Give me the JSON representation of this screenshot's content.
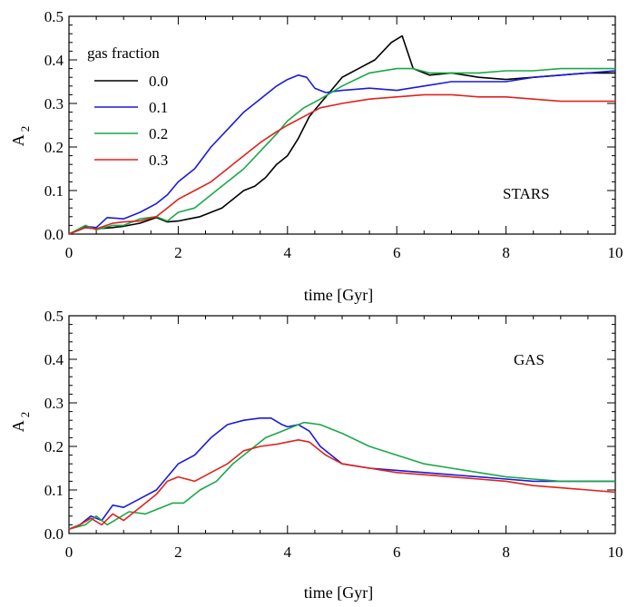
{
  "chart_data": [
    {
      "type": "line",
      "panel_label": "STARS",
      "xlabel": "time [Gyr]",
      "ylabel": "A",
      "ylabel_sub": "2",
      "xlim": [
        0,
        10
      ],
      "ylim": [
        0,
        0.5
      ],
      "xticks": [
        "0",
        "2",
        "4",
        "6",
        "8",
        "10"
      ],
      "yticks": [
        "0.0",
        "0.1",
        "0.2",
        "0.3",
        "0.4",
        "0.5"
      ],
      "legend": {
        "title": "gas fraction",
        "placement": "top-left"
      },
      "series": [
        {
          "name": "0.0",
          "color": "#000000",
          "x": [
            0,
            0.3,
            0.5,
            0.8,
            1.0,
            1.3,
            1.6,
            1.8,
            2.0,
            2.2,
            2.4,
            2.6,
            2.8,
            3.0,
            3.2,
            3.4,
            3.6,
            3.8,
            4.0,
            4.2,
            4.4,
            4.6,
            4.8,
            5.0,
            5.3,
            5.6,
            5.9,
            6.1,
            6.3,
            6.6,
            7.0,
            7.5,
            8.0,
            8.5,
            9.0,
            9.5,
            10.0
          ],
          "y": [
            0.0,
            0.015,
            0.012,
            0.015,
            0.018,
            0.025,
            0.038,
            0.028,
            0.03,
            0.035,
            0.04,
            0.05,
            0.06,
            0.08,
            0.1,
            0.11,
            0.13,
            0.16,
            0.18,
            0.22,
            0.27,
            0.3,
            0.33,
            0.36,
            0.38,
            0.4,
            0.44,
            0.455,
            0.38,
            0.365,
            0.37,
            0.36,
            0.355,
            0.36,
            0.365,
            0.37,
            0.37
          ]
        },
        {
          "name": "0.1",
          "color": "#1a1adc",
          "x": [
            0,
            0.3,
            0.5,
            0.7,
            1.0,
            1.3,
            1.6,
            1.8,
            2.0,
            2.3,
            2.6,
            2.9,
            3.2,
            3.5,
            3.8,
            4.0,
            4.2,
            4.35,
            4.5,
            4.7,
            5.0,
            5.5,
            6.0,
            6.5,
            7.0,
            7.5,
            8.0,
            8.5,
            9.0,
            9.5,
            10.0
          ],
          "y": [
            0.0,
            0.018,
            0.015,
            0.038,
            0.035,
            0.05,
            0.07,
            0.09,
            0.12,
            0.15,
            0.2,
            0.24,
            0.28,
            0.31,
            0.34,
            0.355,
            0.365,
            0.36,
            0.335,
            0.325,
            0.33,
            0.335,
            0.33,
            0.34,
            0.35,
            0.35,
            0.35,
            0.36,
            0.365,
            0.37,
            0.375
          ]
        },
        {
          "name": "0.2",
          "color": "#1aa84a",
          "x": [
            0,
            0.3,
            0.5,
            0.8,
            1.0,
            1.3,
            1.6,
            1.8,
            2.0,
            2.3,
            2.6,
            2.9,
            3.2,
            3.5,
            3.8,
            4.0,
            4.3,
            4.6,
            5.0,
            5.5,
            6.0,
            6.3,
            6.6,
            7.0,
            7.5,
            8.0,
            8.5,
            9.0,
            9.5,
            10.0
          ],
          "y": [
            0.0,
            0.02,
            0.01,
            0.02,
            0.02,
            0.035,
            0.04,
            0.03,
            0.05,
            0.06,
            0.09,
            0.12,
            0.15,
            0.19,
            0.23,
            0.26,
            0.29,
            0.31,
            0.34,
            0.37,
            0.38,
            0.38,
            0.37,
            0.37,
            0.37,
            0.375,
            0.375,
            0.38,
            0.38,
            0.38
          ]
        },
        {
          "name": "0.3",
          "color": "#e0221c",
          "x": [
            0,
            0.3,
            0.5,
            0.8,
            1.0,
            1.3,
            1.6,
            1.8,
            2.0,
            2.3,
            2.6,
            2.9,
            3.2,
            3.5,
            3.8,
            4.0,
            4.3,
            4.6,
            5.0,
            5.5,
            6.0,
            6.5,
            7.0,
            7.5,
            8.0,
            8.5,
            9.0,
            9.5,
            10.0
          ],
          "y": [
            0.0,
            0.015,
            0.012,
            0.025,
            0.028,
            0.03,
            0.04,
            0.06,
            0.08,
            0.1,
            0.12,
            0.15,
            0.18,
            0.21,
            0.235,
            0.25,
            0.27,
            0.29,
            0.3,
            0.31,
            0.315,
            0.32,
            0.32,
            0.315,
            0.315,
            0.31,
            0.305,
            0.305,
            0.305
          ]
        }
      ]
    },
    {
      "type": "line",
      "panel_label": "GAS",
      "xlabel": "time [Gyr]",
      "ylabel": "A",
      "ylabel_sub": "2",
      "xlim": [
        0,
        10
      ],
      "ylim": [
        0,
        0.5
      ],
      "xticks": [
        "0",
        "2",
        "4",
        "6",
        "8",
        "10"
      ],
      "yticks": [
        "0.0",
        "0.1",
        "0.2",
        "0.3",
        "0.4",
        "0.5"
      ],
      "series": [
        {
          "name": "0.1",
          "color": "#1a1adc",
          "x": [
            0,
            0.2,
            0.4,
            0.6,
            0.8,
            1.0,
            1.3,
            1.6,
            1.8,
            2.0,
            2.3,
            2.6,
            2.9,
            3.2,
            3.5,
            3.7,
            3.9,
            4.0,
            4.2,
            4.4,
            4.6,
            5.0,
            5.5,
            6.0,
            6.5,
            7.0,
            7.5,
            8.0,
            8.5,
            9.0,
            9.5,
            10.0
          ],
          "y": [
            0.01,
            0.02,
            0.04,
            0.03,
            0.065,
            0.06,
            0.08,
            0.1,
            0.13,
            0.16,
            0.18,
            0.22,
            0.25,
            0.26,
            0.265,
            0.265,
            0.25,
            0.245,
            0.25,
            0.235,
            0.2,
            0.16,
            0.15,
            0.145,
            0.14,
            0.135,
            0.13,
            0.125,
            0.12,
            0.12,
            0.12,
            0.12
          ]
        },
        {
          "name": "0.2",
          "color": "#1aa84a",
          "x": [
            0,
            0.3,
            0.5,
            0.7,
            0.9,
            1.1,
            1.4,
            1.7,
            1.9,
            2.1,
            2.4,
            2.7,
            3.0,
            3.3,
            3.6,
            3.9,
            4.1,
            4.3,
            4.6,
            5.0,
            5.5,
            6.0,
            6.5,
            7.0,
            7.5,
            8.0,
            8.5,
            9.0,
            9.5,
            10.0
          ],
          "y": [
            0.01,
            0.02,
            0.04,
            0.02,
            0.035,
            0.05,
            0.045,
            0.06,
            0.07,
            0.07,
            0.1,
            0.12,
            0.16,
            0.19,
            0.22,
            0.235,
            0.245,
            0.255,
            0.25,
            0.23,
            0.2,
            0.18,
            0.16,
            0.15,
            0.14,
            0.13,
            0.125,
            0.12,
            0.12,
            0.12
          ]
        },
        {
          "name": "0.3",
          "color": "#e0221c",
          "x": [
            0,
            0.2,
            0.4,
            0.6,
            0.8,
            1.0,
            1.3,
            1.6,
            1.8,
            2.0,
            2.3,
            2.6,
            2.9,
            3.2,
            3.5,
            3.8,
            4.0,
            4.2,
            4.4,
            4.7,
            5.0,
            5.5,
            6.0,
            6.5,
            7.0,
            7.5,
            8.0,
            8.5,
            9.0,
            9.5,
            10.0
          ],
          "y": [
            0.01,
            0.02,
            0.035,
            0.02,
            0.045,
            0.03,
            0.06,
            0.09,
            0.12,
            0.13,
            0.12,
            0.14,
            0.16,
            0.19,
            0.2,
            0.205,
            0.21,
            0.215,
            0.21,
            0.18,
            0.16,
            0.15,
            0.14,
            0.135,
            0.13,
            0.125,
            0.12,
            0.11,
            0.105,
            0.1,
            0.095
          ]
        }
      ]
    }
  ]
}
